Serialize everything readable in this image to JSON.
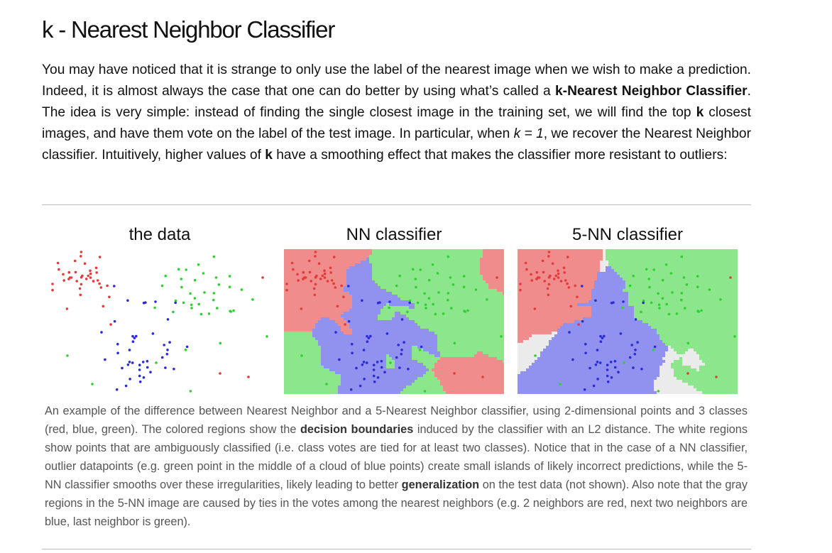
{
  "article": {
    "title": "k - Nearest Neighbor Classifier",
    "paragraph": {
      "p1": "You may have noticed that it is strange to only use the label of the nearest image when we wish to make a prediction. Indeed, it is almost always the case that one can do better by using what’s called a ",
      "b1": "k-Nearest Neighbor Classifier",
      "p2": ". The idea is very simple: instead of finding the single closest image in the training set, we will find the top ",
      "b2": "k",
      "p3": " closest images, and have them vote on the label of the test image. In particular, when ",
      "i1": "k = 1",
      "p4": ", we recover the Nearest Neighbor classifier. Intuitively, higher values of ",
      "b3": "k",
      "p5": " have a smoothing effect that makes the classifier more resistant to outliers:"
    }
  },
  "figure": {
    "panels": [
      {
        "title": "the data"
      },
      {
        "title": "NN classifier"
      },
      {
        "title": "5-NN classifier"
      }
    ],
    "colors": {
      "red_region": "#f08c8c",
      "blue_region": "#9191f0",
      "green_region": "#8ce68c",
      "gray_region": "#ebebeb",
      "red_point": "#e33a3a",
      "blue_point": "#2b2bd6",
      "green_point": "#30d030"
    },
    "caption": {
      "c1": "An example of the difference between Nearest Neighbor and a 5-Nearest Neighbor classifier, using 2-dimensional points and 3 classes (red, blue, green). The colored regions show the ",
      "b1": "decision boundaries",
      "c2": " induced by the classifier with an L2 distance. The white regions show points that are ambiguously classified (i.e. class votes are tied for at least two classes). Notice that in the case of a NN classifier, outlier datapoints (e.g. green point in the middle of a cloud of blue points) create small islands of likely incorrect predictions, while the 5-NN classifier smooths over these irregularities, likely leading to better ",
      "b2": "generalization",
      "c3": " on the test data (not shown). Also note that the gray regions in the 5-NN image are caused by ties in the votes among the nearest neighbors (e.g. 2 neighbors are red, next two neighbors are blue, last neighbor is green)."
    }
  }
}
